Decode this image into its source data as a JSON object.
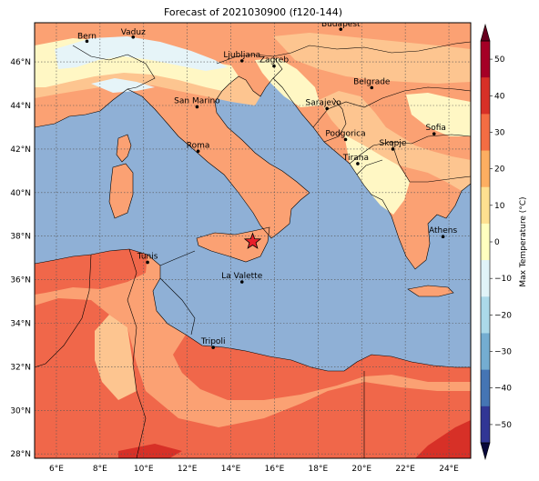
{
  "title": "Forecast of 2021030900 (f120-144)",
  "x_ticks": [
    "6°E",
    "8°E",
    "10°E",
    "12°E",
    "14°E",
    "16°E",
    "18°E",
    "20°E",
    "22°E",
    "24°E"
  ],
  "y_ticks": [
    "46°N",
    "44°N",
    "42°N",
    "40°N",
    "38°N",
    "36°N",
    "34°N",
    "32°N",
    "30°N",
    "28°N"
  ],
  "colorbar": {
    "label": "Max Temperature (°C)",
    "ticks": [
      "50",
      "40",
      "30",
      "20",
      "10",
      "0",
      "−10",
      "−20",
      "−30",
      "−40",
      "−50"
    ],
    "colors": [
      "#a50026",
      "#d73027",
      "#f46d43",
      "#fdae61",
      "#fee090",
      "#ffffbf",
      "#e0f3f8",
      "#abd9e9",
      "#74add1",
      "#4575b4",
      "#313695"
    ]
  },
  "colors": {
    "sea": "#8fb0d6",
    "land_20_30": "#fba173",
    "land_10_20": "#fdc590",
    "land_0_10": "#fff7c4",
    "land_30_40": "#f0674a",
    "land_40_50": "#d73027",
    "cold_0_m10": "#e6f4f8",
    "marker": "#e8202a"
  },
  "cities": [
    {
      "name": "Bern",
      "lon": 7.4,
      "lat": 46.95
    },
    {
      "name": "Vaduz",
      "lon": 9.52,
      "lat": 47.14
    },
    {
      "name": "Budapest",
      "lon": 19.04,
      "lat": 47.5
    },
    {
      "name": "Ljubljana",
      "lon": 14.51,
      "lat": 46.05
    },
    {
      "name": "Zagreb",
      "lon": 15.98,
      "lat": 45.81
    },
    {
      "name": "Belgrade",
      "lon": 20.46,
      "lat": 44.82
    },
    {
      "name": "San Marino",
      "lon": 12.45,
      "lat": 43.94
    },
    {
      "name": "Sarajevo",
      "lon": 18.41,
      "lat": 43.86
    },
    {
      "name": "Sofia",
      "lon": 23.32,
      "lat": 42.7
    },
    {
      "name": "Roma",
      "lon": 12.5,
      "lat": 41.9
    },
    {
      "name": "Podgorica",
      "lon": 19.26,
      "lat": 42.44
    },
    {
      "name": "Skopje",
      "lon": 21.43,
      "lat": 42.0
    },
    {
      "name": "Tirana",
      "lon": 19.82,
      "lat": 41.33
    },
    {
      "name": "Athens",
      "lon": 23.73,
      "lat": 37.98
    },
    {
      "name": "Tunis",
      "lon": 10.18,
      "lat": 36.8
    },
    {
      "name": "La Valette",
      "lon": 14.51,
      "lat": 35.9
    },
    {
      "name": "Tripoli",
      "lon": 13.19,
      "lat": 32.89
    }
  ],
  "marker": {
    "type": "star",
    "lon": 15.0,
    "lat": 37.75
  }
}
